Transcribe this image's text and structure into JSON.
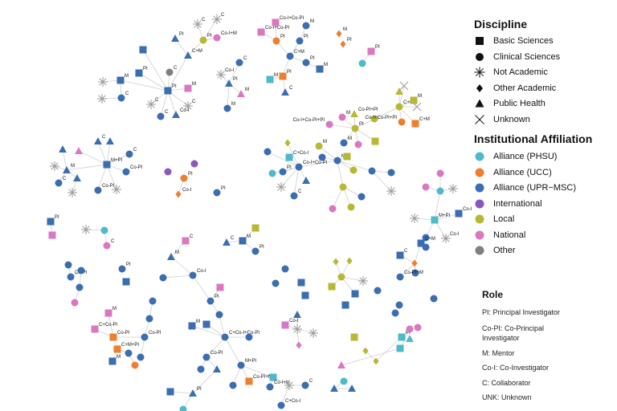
{
  "legend": {
    "discipline_title": "Discipline",
    "disciplines": [
      {
        "key": "B",
        "label": "Basic Sciences",
        "shape": "square"
      },
      {
        "key": "C",
        "label": "Clinical Sciences",
        "shape": "circle"
      },
      {
        "key": "N",
        "label": "Not Academic",
        "shape": "asterisk"
      },
      {
        "key": "O",
        "label": "Other Academic",
        "shape": "diamond"
      },
      {
        "key": "P",
        "label": "Public Health",
        "shape": "triangle"
      },
      {
        "key": "X",
        "label": "Unknown",
        "shape": "x"
      }
    ],
    "affiliation_title": "Institutional Affiliation",
    "affiliations": [
      {
        "key": "PH",
        "label": "Alliance (PHSU)",
        "color": "#4fb9cc"
      },
      {
        "key": "UCC",
        "label": "Alliance (UCC)",
        "color": "#ef7f2d"
      },
      {
        "key": "UPR",
        "label": "Alliance (UPR−MSC)",
        "color": "#3a6eb0"
      },
      {
        "key": "INT",
        "label": "International",
        "color": "#8a58bd"
      },
      {
        "key": "LOC",
        "label": "Local",
        "color": "#b7b833"
      },
      {
        "key": "NAT",
        "label": "National",
        "color": "#d977c3"
      },
      {
        "key": "OTH",
        "label": "Other",
        "color": "#7f7f7f"
      }
    ],
    "not_academic_color": "#9a9a9a",
    "role_title": "Role",
    "roles": [
      "PI:  Principal Investigator",
      "Co-PI: Co-Principal Investigator",
      "M:  Mentor",
      "Co-I:   Co-Investigator",
      "C:  Collaborator",
      "UNK: Unknown"
    ]
  },
  "network": {
    "edge_color": "#cfcfcf",
    "nodes": [
      [
        "PI",
        "B",
        "UPR"
      ],
      [
        "",
        "B",
        "UPR"
      ],
      [
        "PI",
        "B",
        "UPR"
      ],
      [
        "M",
        "B",
        "UPR"
      ],
      [
        "C",
        "C",
        "UPR"
      ],
      [
        "",
        "N",
        ""
      ],
      [
        "",
        "N",
        ""
      ],
      [
        "C",
        "C",
        "OTH"
      ],
      [
        "M",
        "B",
        "NAT"
      ],
      [
        "C",
        "N",
        ""
      ],
      [
        "C",
        "N",
        ""
      ],
      [
        "C",
        "C",
        "UPR"
      ],
      [
        "Co-I",
        "P",
        "UPR"
      ],
      [
        "C+M",
        "P",
        "UPR"
      ],
      [
        "PI",
        "P",
        "UPR"
      ],
      [
        "PI",
        "C",
        "LOC"
      ],
      [
        "C",
        "N",
        ""
      ],
      [
        "C",
        "N",
        ""
      ],
      [
        "Co-I+M",
        "C",
        "NAT"
      ],
      [
        "PI",
        "P",
        "UPR"
      ],
      [
        "Co-I",
        "N",
        ""
      ],
      [
        "C",
        "C",
        "UPR"
      ],
      [
        "M",
        "P",
        "NAT"
      ],
      [
        "M",
        "C",
        "UPR"
      ],
      [
        "C+M",
        "C",
        "UPR"
      ],
      [
        "PI",
        "C",
        "UCC"
      ],
      [
        "Co-I+Co-PI",
        "B",
        "NAT"
      ],
      [
        "Co-I+Co-PI",
        "B",
        "NAT"
      ],
      [
        "PI",
        "C",
        "UPR"
      ],
      [
        "M",
        "C",
        "UPR"
      ],
      [
        "PI",
        "C",
        "UPR"
      ],
      [
        "M",
        "B",
        "UPR"
      ],
      [
        "PI",
        "B",
        "UCC"
      ],
      [
        "M",
        "B",
        "PH"
      ],
      [
        "C",
        "P",
        "UPR"
      ],
      [
        "M",
        "O",
        "UCC"
      ],
      [
        "PI",
        "O",
        "UCC"
      ],
      [
        "PI",
        "B",
        "NAT"
      ],
      [
        "",
        "C",
        "PH"
      ],
      [
        "PI",
        "C",
        "LOC"
      ],
      [
        "Co-PI+PI",
        "P",
        "LOC"
      ],
      [
        "M",
        "C",
        "NAT"
      ],
      [
        "",
        "C",
        "LOC"
      ],
      [
        "",
        "B",
        "LOC"
      ],
      [
        "",
        "C",
        "NAT"
      ],
      [
        "M",
        "C",
        "UPR"
      ],
      [
        "C+M",
        "C",
        "LOC"
      ],
      [
        "",
        "P",
        "LOC"
      ],
      [
        "",
        "X",
        ""
      ],
      [
        "M",
        "B",
        "LOC"
      ],
      [
        "",
        "X",
        ""
      ],
      [
        "Co-I+Co-PI+PI",
        "C",
        "UCC"
      ],
      [
        "C+M",
        "B",
        "UCC"
      ],
      [
        "Co-I+Co-PI+PI",
        "C",
        "NAT"
      ],
      [
        "M",
        "C",
        "UPR"
      ],
      [
        "Co-I+Co-PI",
        "C",
        "UPR"
      ],
      [
        "C+Co-I",
        "B",
        "PH"
      ],
      [
        "",
        "O",
        "LOC"
      ],
      [
        "",
        "C",
        "UPR"
      ],
      [
        "PI",
        "C",
        "UPR"
      ],
      [
        "",
        "C",
        "PH"
      ],
      [
        "",
        "P",
        "UPR"
      ],
      [
        "",
        "N",
        ""
      ],
      [
        "C",
        "C",
        "UPR"
      ],
      [
        "M",
        "C",
        "LOC"
      ],
      [
        "",
        "C",
        "UPR"
      ],
      [
        "",
        "B",
        "LOC"
      ],
      [
        "",
        "C",
        "LOC"
      ],
      [
        "",
        "C",
        "UPR"
      ],
      [
        "",
        "C",
        "UPR"
      ],
      [
        "",
        "N",
        ""
      ],
      [
        "",
        "C",
        "LOC"
      ],
      [
        "",
        "C",
        "NAT"
      ],
      [
        "",
        "C",
        "LOC"
      ],
      [
        "",
        "C",
        "UPR"
      ],
      [
        "M+PI",
        "B",
        "UPR"
      ],
      [
        "",
        "P",
        "NAT"
      ],
      [
        "C",
        "P",
        "UPR"
      ],
      [
        "",
        "P",
        "UPR"
      ],
      [
        "C",
        "C",
        "UPR"
      ],
      [
        "",
        "P",
        "UPR"
      ],
      [
        "M",
        "P",
        "UPR"
      ],
      [
        "",
        "N",
        ""
      ],
      [
        "",
        "P",
        "UPR"
      ],
      [
        "Co-PI",
        "C",
        "UPR"
      ],
      [
        "Co-PI",
        "C",
        "UPR"
      ],
      [
        "",
        "N",
        ""
      ],
      [
        "",
        "N",
        ""
      ],
      [
        "C",
        "C",
        "UPR"
      ],
      [
        "",
        "C",
        "INT"
      ],
      [
        "",
        "C",
        "INT"
      ],
      [
        "PI",
        "C",
        "UCC"
      ],
      [
        "Co-I",
        "O",
        "UCC"
      ],
      [
        "PI",
        "C",
        "UPR"
      ],
      [
        "",
        "C",
        "PH"
      ],
      [
        "",
        "C",
        "NAT"
      ],
      [
        "",
        "N",
        ""
      ],
      [
        "",
        "C",
        "NAT"
      ],
      [
        "M+PI",
        "B",
        "PH"
      ],
      [
        "",
        "N",
        ""
      ],
      [
        "Co-I",
        "B",
        "UPR"
      ],
      [
        "Co-I",
        "N",
        ""
      ],
      [
        "",
        "C",
        "UPR"
      ],
      [
        "C+M",
        "B",
        "UPR"
      ],
      [
        "C",
        "B",
        "UPR"
      ],
      [
        "",
        "O",
        "UCC"
      ],
      [
        "",
        "C",
        "UPR"
      ],
      [
        "Co-PI+M",
        "C",
        "UPR"
      ],
      [
        "",
        "C",
        "UPR"
      ],
      [
        "PI",
        "B",
        "UPR"
      ],
      [
        "",
        "B",
        "NAT"
      ],
      [
        "",
        "N",
        ""
      ],
      [
        "",
        "C",
        "PH"
      ],
      [
        "C",
        "C",
        "NAT"
      ],
      [
        "",
        "C",
        "UPR"
      ],
      [
        "Co-PI",
        "C",
        "UPR"
      ],
      [
        "",
        "C",
        "UPR"
      ],
      [
        "",
        "C",
        "UPR"
      ],
      [
        "",
        "C",
        "NAT"
      ],
      [
        "PI",
        "C",
        "UPR"
      ],
      [
        "",
        "B",
        "UPR"
      ],
      [
        "C",
        "B",
        "NAT"
      ],
      [
        "M",
        "P",
        "UPR"
      ],
      [
        "",
        "C",
        "UPR"
      ],
      [
        "Co-I",
        "C",
        "UPR"
      ],
      [
        "",
        "B",
        "NAT"
      ],
      [
        "C",
        "P",
        "UPR"
      ],
      [
        "",
        "B",
        "LOC"
      ],
      [
        "M",
        "B",
        "UPR"
      ],
      [
        "PI",
        "C",
        "UPR"
      ],
      [
        "PI",
        "C",
        "UPR"
      ],
      [
        "",
        "C",
        "UPR"
      ],
      [
        "M",
        "B",
        "UPR"
      ],
      [
        "",
        "B",
        "UPR"
      ],
      [
        "C+Co-I+Co-PI",
        "C",
        "UPR"
      ],
      [
        "",
        "C",
        "UPR"
      ],
      [
        "Co-PI",
        "C",
        "UPR"
      ],
      [
        "",
        "C",
        "UPR"
      ],
      [
        "",
        "P",
        "UPR"
      ],
      [
        "M+PI",
        "C",
        "UPR"
      ],
      [
        "Co-PI+M",
        "B",
        "UCC"
      ],
      [
        "",
        "C",
        "UPR"
      ],
      [
        "",
        "B",
        "PH"
      ],
      [
        "Co-I+M",
        "C",
        "UPR"
      ],
      [
        "",
        "N",
        ""
      ],
      [
        "C",
        "C",
        "UPR"
      ],
      [
        "C+Co-I",
        "C",
        "UPR"
      ],
      [
        "PI",
        "P",
        "UPR"
      ],
      [
        "",
        "B",
        "UPR"
      ],
      [
        "",
        "C",
        "PH"
      ],
      [
        "",
        "C",
        "UPR"
      ],
      [
        "",
        "C",
        "UPR"
      ],
      [
        "Co-PI",
        "C",
        "UPR"
      ],
      [
        "",
        "C",
        "UPR"
      ],
      [
        "M",
        "B",
        "NAT"
      ],
      [
        "C+Co-PI",
        "B",
        "NAT"
      ],
      [
        "Co-PI",
        "B",
        "UCC"
      ],
      [
        "C+M+PI",
        "B",
        "UCC"
      ],
      [
        "",
        "C",
        "UPR"
      ],
      [
        "",
        "C",
        "UCC"
      ],
      [
        "M",
        "B",
        "UPR"
      ],
      [
        "",
        "C",
        "UPR"
      ],
      [
        "",
        "C",
        "UPR"
      ],
      [
        "",
        "B",
        "UPR"
      ],
      [
        "",
        "B",
        "UPR"
      ],
      [
        "",
        "C",
        "LOC"
      ],
      [
        "",
        "O",
        "LOC"
      ],
      [
        "",
        "B",
        "LOC"
      ],
      [
        "",
        "O",
        "LOC"
      ],
      [
        "",
        "N",
        ""
      ],
      [
        "",
        "B",
        "UPR"
      ],
      [
        "",
        "B",
        "UPR"
      ],
      [
        "",
        "C",
        "UPR"
      ],
      [
        "",
        "C",
        "UPR"
      ],
      [
        "",
        "C",
        "UPR"
      ],
      [
        "",
        "C",
        "UPR"
      ],
      [
        "",
        "N",
        ""
      ],
      [
        "",
        "P",
        "UPR"
      ],
      [
        "Co-I",
        "B",
        "NAT"
      ],
      [
        "",
        "N",
        ""
      ],
      [
        "",
        "O",
        "NAT"
      ],
      [
        "",
        "B",
        "LOC"
      ],
      [
        "",
        "O",
        "LOC"
      ],
      [
        "",
        "O",
        "LOC"
      ],
      [
        "PI",
        "B",
        "PH"
      ],
      [
        "",
        "C",
        "NAT"
      ],
      [
        "",
        "C",
        "NAT"
      ],
      [
        "",
        "P",
        "PH"
      ],
      [
        "",
        "B",
        "PH"
      ],
      [
        "",
        "P",
        "NAT"
      ],
      [
        "",
        "C",
        "PH"
      ],
      [
        "",
        "P",
        "UPR"
      ],
      [
        "",
        "P",
        "UPR"
      ]
    ],
    "edges": [
      [
        0,
        1
      ],
      [
        0,
        2
      ],
      [
        0,
        3
      ],
      [
        0,
        7
      ],
      [
        0,
        8
      ],
      [
        0,
        9
      ],
      [
        0,
        10
      ],
      [
        0,
        11
      ],
      [
        0,
        12
      ],
      [
        0,
        13
      ],
      [
        13,
        14
      ],
      [
        13,
        15
      ],
      [
        15,
        16
      ],
      [
        15,
        17
      ],
      [
        15,
        18
      ],
      [
        3,
        5
      ],
      [
        4,
        6
      ],
      [
        3,
        4
      ],
      [
        19,
        20
      ],
      [
        19,
        21
      ],
      [
        19,
        22
      ],
      [
        19,
        23
      ],
      [
        24,
        25
      ],
      [
        25,
        26
      ],
      [
        25,
        27
      ],
      [
        24,
        28
      ],
      [
        28,
        29
      ],
      [
        24,
        30
      ],
      [
        30,
        31
      ],
      [
        24,
        32
      ],
      [
        32,
        33
      ],
      [
        32,
        34
      ],
      [
        37,
        38
      ],
      [
        39,
        40
      ],
      [
        39,
        41
      ],
      [
        39,
        42
      ],
      [
        39,
        43
      ],
      [
        39,
        44
      ],
      [
        39,
        45
      ],
      [
        42,
        46
      ],
      [
        46,
        47
      ],
      [
        46,
        48
      ],
      [
        46,
        49
      ],
      [
        46,
        50
      ],
      [
        46,
        51
      ],
      [
        46,
        52
      ],
      [
        39,
        53
      ],
      [
        55,
        56
      ],
      [
        55,
        57
      ],
      [
        55,
        58
      ],
      [
        55,
        59
      ],
      [
        55,
        60
      ],
      [
        55,
        61
      ],
      [
        55,
        62
      ],
      [
        55,
        63
      ],
      [
        55,
        54
      ],
      [
        54,
        64
      ],
      [
        54,
        65
      ],
      [
        54,
        66
      ],
      [
        54,
        67
      ],
      [
        54,
        68
      ],
      [
        68,
        69
      ],
      [
        68,
        70
      ],
      [
        54,
        71
      ],
      [
        71,
        72
      ],
      [
        71,
        73
      ],
      [
        71,
        74
      ],
      [
        75,
        76
      ],
      [
        75,
        77
      ],
      [
        75,
        78
      ],
      [
        75,
        79
      ],
      [
        75,
        81
      ],
      [
        81,
        80
      ],
      [
        81,
        82
      ],
      [
        81,
        83
      ],
      [
        75,
        84
      ],
      [
        75,
        85
      ],
      [
        75,
        86
      ],
      [
        83,
        87
      ],
      [
        81,
        88
      ],
      [
        91,
        92
      ],
      [
        94,
        95
      ],
      [
        94,
        96
      ],
      [
        94,
        97
      ],
      [
        94,
        98
      ],
      [
        98,
        99
      ],
      [
        98,
        100
      ],
      [
        98,
        101
      ],
      [
        98,
        102
      ],
      [
        102,
        103
      ],
      [
        104,
        105
      ],
      [
        105,
        106
      ],
      [
        105,
        107
      ],
      [
        103,
        105
      ],
      [
        109,
        110
      ],
      [
        112,
        111
      ],
      [
        112,
        113
      ],
      [
        115,
        114
      ],
      [
        115,
        116
      ],
      [
        116,
        117
      ],
      [
        117,
        118
      ],
      [
        121,
        122
      ],
      [
        122,
        124
      ],
      [
        124,
        123
      ],
      [
        124,
        130
      ],
      [
        130,
        125
      ],
      [
        130,
        131
      ],
      [
        131,
        134
      ],
      [
        134,
        132
      ],
      [
        134,
        133
      ],
      [
        134,
        135
      ],
      [
        134,
        136
      ],
      [
        136,
        137
      ],
      [
        136,
        138
      ],
      [
        134,
        139
      ],
      [
        139,
        140
      ],
      [
        139,
        141
      ],
      [
        139,
        142
      ],
      [
        142,
        143
      ],
      [
        142,
        144
      ],
      [
        144,
        145
      ],
      [
        144,
        146
      ],
      [
        138,
        147
      ],
      [
        147,
        148
      ],
      [
        147,
        149
      ],
      [
        127,
        128
      ],
      [
        128,
        129
      ],
      [
        126,
        128
      ],
      [
        150,
        151
      ],
      [
        151,
        152
      ],
      [
        152,
        156
      ],
      [
        156,
        155
      ],
      [
        156,
        154
      ],
      [
        156,
        157
      ],
      [
        157,
        160
      ],
      [
        157,
        158
      ],
      [
        158,
        159
      ],
      [
        152,
        153
      ],
      [
        165,
        166
      ],
      [
        165,
        167
      ],
      [
        165,
        168
      ],
      [
        165,
        169
      ],
      [
        165,
        170
      ],
      [
        176,
        177
      ],
      [
        176,
        178
      ],
      [
        176,
        179
      ],
      [
        176,
        180
      ],
      [
        182,
        183
      ],
      [
        183,
        184
      ],
      [
        185,
        188
      ],
      [
        188,
        189
      ],
      [
        191,
        190
      ],
      [
        191,
        192
      ],
      [
        191,
        193
      ]
    ]
  }
}
